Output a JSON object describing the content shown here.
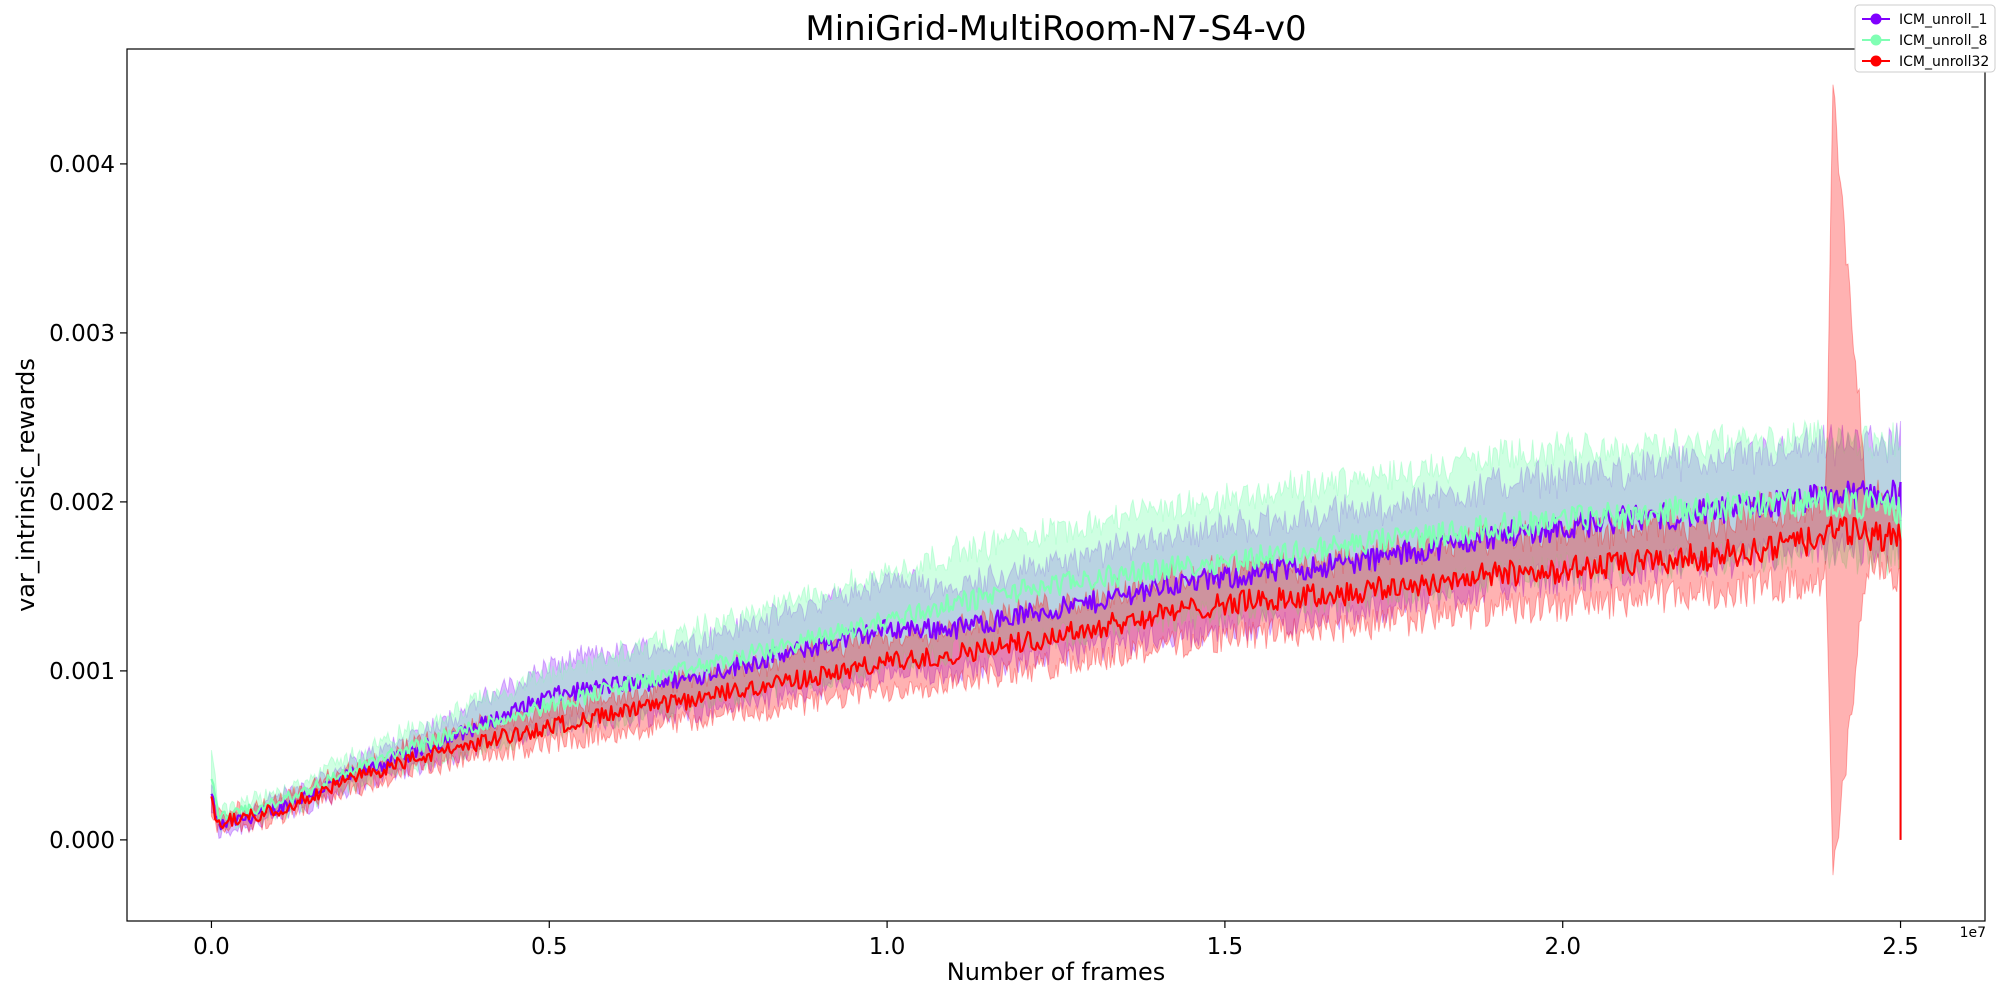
{
  "chart_data": {
    "type": "line",
    "title": "MiniGrid-MultiRoom-N7-S4-v0",
    "xlabel": "Number of frames",
    "ylabel": "var_intrinsic_rewards",
    "x_offset_label": "1e7",
    "xlim": [
      -0.125,
      2.625
    ],
    "ylim": [
      -0.00048,
      0.00468
    ],
    "x_ticks": [
      0.0,
      0.5,
      1.0,
      1.5,
      2.0,
      2.5
    ],
    "x_tick_labels": [
      "0.0",
      "0.5",
      "1.0",
      "1.5",
      "2.0",
      "2.5"
    ],
    "y_ticks": [
      0.0,
      0.001,
      0.002,
      0.003,
      0.004
    ],
    "y_tick_labels": [
      "0.000",
      "0.001",
      "0.002",
      "0.003",
      "0.004"
    ],
    "grid": false,
    "legend_position": "top-right",
    "series": [
      {
        "name": "ICM_unroll_1",
        "color": "#8000ff",
        "band_color": "#8000ff",
        "band_opacity": 0.28,
        "x": [
          0.0,
          0.01,
          0.1,
          0.2,
          0.3,
          0.4,
          0.5,
          0.6,
          0.7,
          0.8,
          0.9,
          1.0,
          1.1,
          1.2,
          1.3,
          1.4,
          1.5,
          1.6,
          1.7,
          1.8,
          1.9,
          2.0,
          2.1,
          2.2,
          2.3,
          2.4,
          2.45,
          2.5
        ],
        "mean": [
          0.00026,
          8e-05,
          0.00019,
          0.00037,
          0.00052,
          0.00068,
          0.00085,
          0.00092,
          0.00095,
          0.00105,
          0.00115,
          0.00125,
          0.00125,
          0.00133,
          0.0014,
          0.0015,
          0.00155,
          0.0016,
          0.00165,
          0.00172,
          0.0018,
          0.00185,
          0.0019,
          0.00193,
          0.00198,
          0.00203,
          0.00205,
          0.00205
        ],
        "lower": [
          0.00018,
          4e-05,
          0.00013,
          0.0003,
          0.00043,
          0.00055,
          0.00067,
          0.00072,
          0.00075,
          0.00082,
          0.0009,
          0.00097,
          0.001,
          0.00107,
          0.00113,
          0.0012,
          0.00125,
          0.0013,
          0.00135,
          0.00142,
          0.0015,
          0.00155,
          0.0016,
          0.00163,
          0.00168,
          0.00172,
          0.00174,
          0.00175
        ],
        "upper": [
          0.00034,
          0.00012,
          0.00025,
          0.00044,
          0.00062,
          0.00082,
          0.00103,
          0.00112,
          0.00115,
          0.00128,
          0.0014,
          0.00153,
          0.0015,
          0.0016,
          0.00167,
          0.0018,
          0.00185,
          0.0019,
          0.00195,
          0.00202,
          0.0021,
          0.00215,
          0.0022,
          0.00223,
          0.00228,
          0.00233,
          0.00235,
          0.00235
        ]
      },
      {
        "name": "ICM_unroll_8",
        "color": "#80ffb4",
        "band_color": "#80ffb4",
        "band_opacity": 0.38,
        "x": [
          0.0,
          0.01,
          0.1,
          0.2,
          0.3,
          0.4,
          0.5,
          0.6,
          0.7,
          0.8,
          0.9,
          1.0,
          1.1,
          1.2,
          1.3,
          1.4,
          1.5,
          1.6,
          1.7,
          1.8,
          1.9,
          2.0,
          2.1,
          2.2,
          2.3,
          2.4,
          2.45,
          2.5
        ],
        "mean": [
          0.0004,
          0.00012,
          0.00022,
          0.0004,
          0.00055,
          0.00068,
          0.0008,
          0.0009,
          0.001,
          0.0011,
          0.0012,
          0.0013,
          0.0014,
          0.00148,
          0.00154,
          0.0016,
          0.00165,
          0.0017,
          0.00175,
          0.0018,
          0.00185,
          0.0019,
          0.00193,
          0.00196,
          0.00199,
          0.002,
          0.00198,
          0.00196
        ],
        "lower": [
          0.0003,
          8e-05,
          0.00016,
          0.00032,
          0.00045,
          0.00055,
          0.00064,
          0.00072,
          0.0008,
          0.00088,
          0.00096,
          0.00104,
          0.00112,
          0.00118,
          0.00124,
          0.0013,
          0.00135,
          0.0014,
          0.00145,
          0.0015,
          0.00155,
          0.0016,
          0.00163,
          0.00166,
          0.00169,
          0.0017,
          0.00168,
          0.00166
        ],
        "upper": [
          0.00055,
          0.00016,
          0.00028,
          0.00048,
          0.00066,
          0.00083,
          0.00098,
          0.0011,
          0.00122,
          0.00134,
          0.00146,
          0.00158,
          0.0017,
          0.0018,
          0.00188,
          0.00195,
          0.00202,
          0.00208,
          0.00214,
          0.0022,
          0.00226,
          0.0023,
          0.00232,
          0.00235,
          0.00237,
          0.00238,
          0.00236,
          0.00234
        ]
      },
      {
        "name": "ICM_unroll32",
        "color": "#ff0000",
        "band_color": "#ff0000",
        "band_opacity": 0.3,
        "x": [
          0.0,
          0.01,
          0.1,
          0.2,
          0.3,
          0.4,
          0.5,
          0.6,
          0.7,
          0.8,
          0.9,
          1.0,
          1.1,
          1.2,
          1.3,
          1.4,
          1.5,
          1.6,
          1.7,
          1.8,
          1.9,
          2.0,
          2.1,
          2.2,
          2.3,
          2.39,
          2.4,
          2.45,
          2.5
        ],
        "mean": [
          0.00022,
          0.0001,
          0.00018,
          0.00035,
          0.00048,
          0.00058,
          0.00067,
          0.00075,
          0.00082,
          0.0009,
          0.00097,
          0.00105,
          0.0011,
          0.00117,
          0.00125,
          0.00133,
          0.0014,
          0.00143,
          0.00147,
          0.00152,
          0.00157,
          0.0016,
          0.00163,
          0.00167,
          0.00172,
          0.00178,
          0.00185,
          0.0018,
          0.0018
        ],
        "lower": [
          0.00016,
          6e-05,
          0.00013,
          0.00029,
          0.00041,
          0.00049,
          0.00057,
          0.00064,
          0.0007,
          0.00076,
          0.00082,
          0.00089,
          0.00094,
          0.001,
          0.00107,
          0.00114,
          0.0012,
          0.00123,
          0.00127,
          0.00131,
          0.00136,
          0.00139,
          0.00142,
          0.00146,
          0.0015,
          0.00155,
          -0.00025,
          0.0016,
          0.00158
        ],
        "upper": [
          0.00028,
          0.00014,
          0.00023,
          0.00041,
          0.00055,
          0.00067,
          0.00077,
          0.00086,
          0.00094,
          0.00104,
          0.00112,
          0.00121,
          0.00126,
          0.00134,
          0.00143,
          0.00152,
          0.0016,
          0.00163,
          0.00167,
          0.00173,
          0.00178,
          0.00181,
          0.00184,
          0.00188,
          0.00194,
          0.00201,
          0.00443,
          0.002,
          0.00202
        ]
      }
    ]
  }
}
